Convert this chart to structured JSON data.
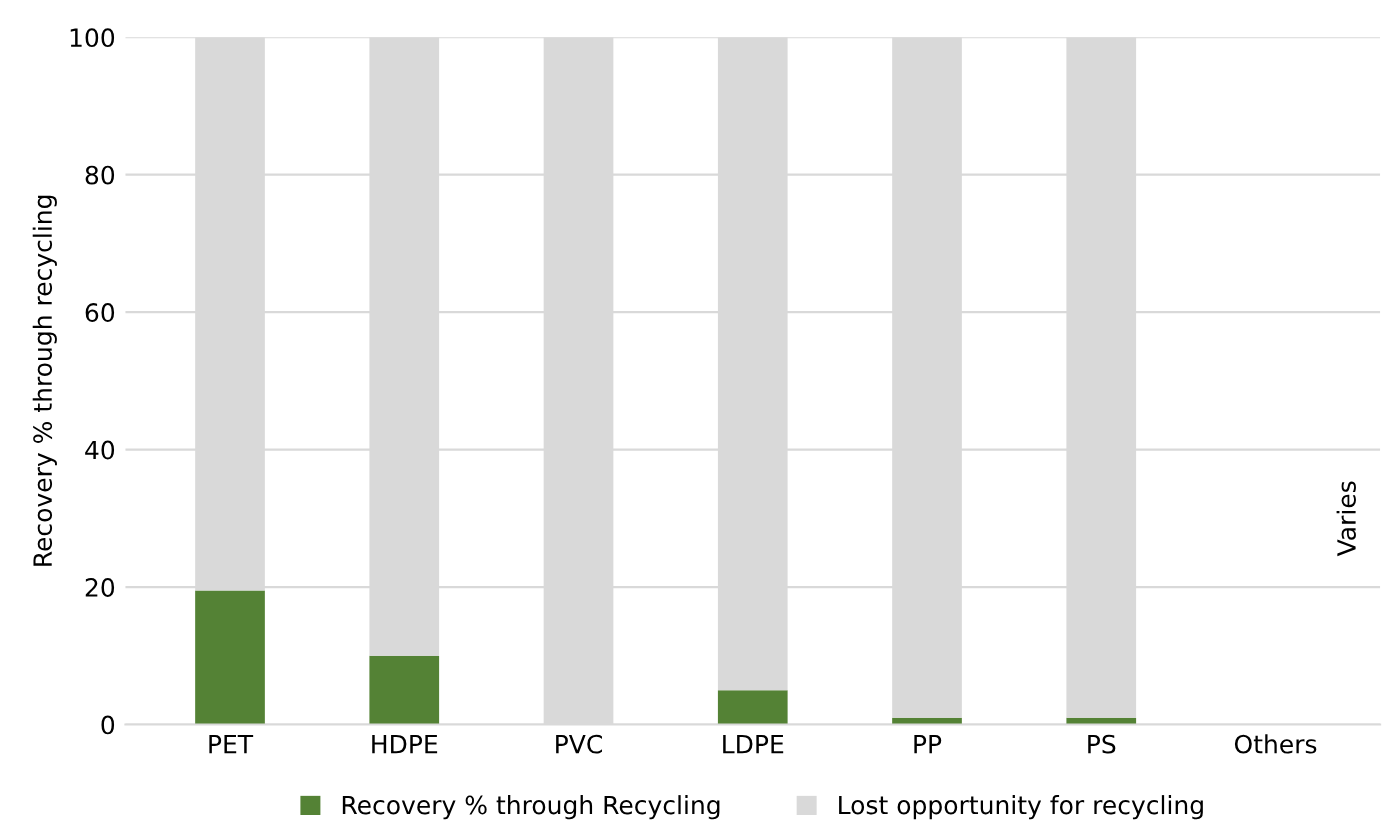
{
  "chart_data": {
    "type": "bar",
    "stacked": true,
    "ylabel": "Recovery % through recycling",
    "categories": [
      "PET",
      "HDPE",
      "PVC",
      "LDPE",
      "PP",
      "PS",
      "Others"
    ],
    "series": [
      {
        "name": "Recovery % through Recycling",
        "color": "#548235",
        "values": [
          19.5,
          10,
          0,
          5,
          1,
          1,
          null
        ]
      },
      {
        "name": "Lost opportunity for recycling",
        "color": "#d9d9d9",
        "values": [
          80.5,
          90,
          100,
          95,
          99,
          99,
          null
        ]
      }
    ],
    "ylim": [
      0,
      100
    ],
    "yticks": [
      0,
      20,
      40,
      60,
      80,
      100
    ],
    "grid": "y",
    "legend": "bottom",
    "annotations": [
      "Varies"
    ]
  }
}
